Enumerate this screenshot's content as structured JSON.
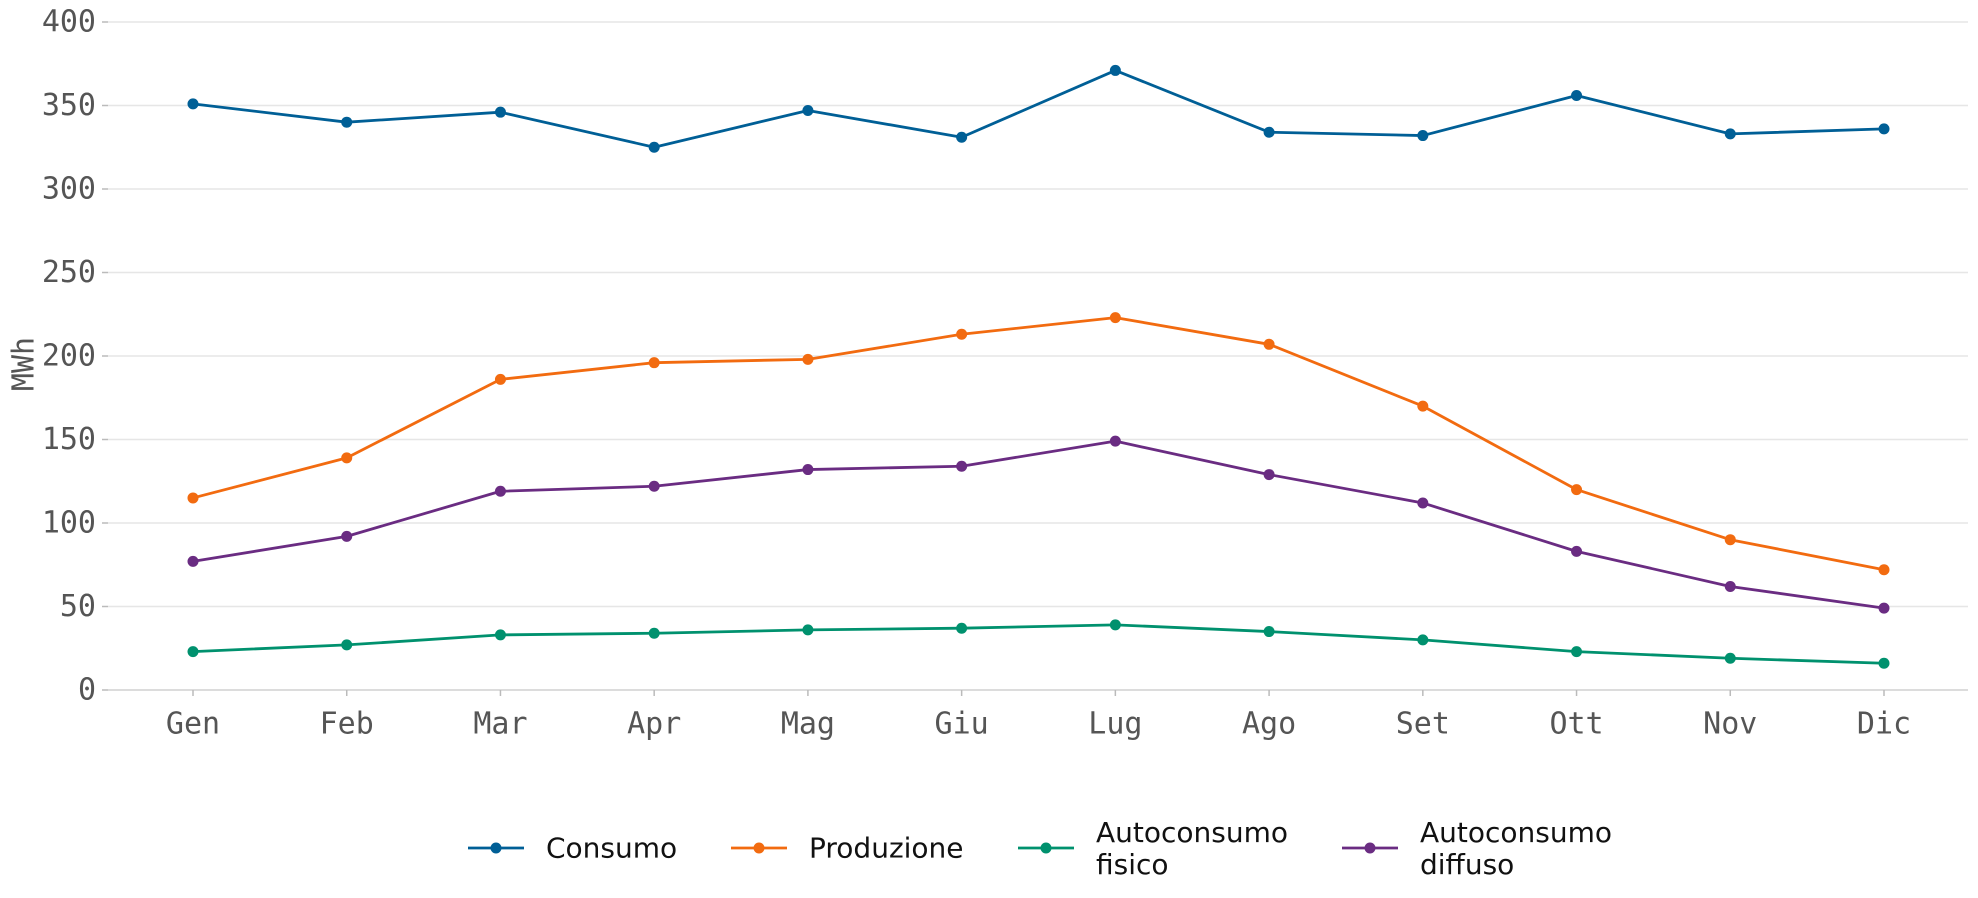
{
  "chart_data": {
    "type": "line",
    "title": "",
    "xlabel": "",
    "ylabel": "MWh",
    "categories": [
      "Gen",
      "Feb",
      "Mar",
      "Apr",
      "Mag",
      "Giu",
      "Lug",
      "Ago",
      "Set",
      "Ott",
      "Nov",
      "Dic"
    ],
    "ylim": [
      0,
      400
    ],
    "yticks": [
      0,
      50,
      100,
      150,
      200,
      250,
      300,
      350,
      400
    ],
    "grid": true,
    "legend_position": "bottom-center",
    "series": [
      {
        "name": "Consumo",
        "color": "#005f96",
        "values": [
          351,
          340,
          346,
          325,
          347,
          331,
          371,
          334,
          332,
          356,
          333,
          336
        ]
      },
      {
        "name": "Produzione",
        "color": "#f26b10",
        "values": [
          115,
          139,
          186,
          196,
          198,
          213,
          223,
          207,
          170,
          120,
          90,
          72
        ]
      },
      {
        "name": "Autoconsumo fisico",
        "color": "#00916e",
        "values": [
          23,
          27,
          33,
          34,
          36,
          37,
          39,
          35,
          30,
          23,
          19,
          16
        ]
      },
      {
        "name": "Autoconsumo diffuso",
        "color": "#6a2c82",
        "values": [
          77,
          92,
          119,
          122,
          132,
          134,
          149,
          129,
          112,
          83,
          62,
          49
        ]
      }
    ]
  }
}
